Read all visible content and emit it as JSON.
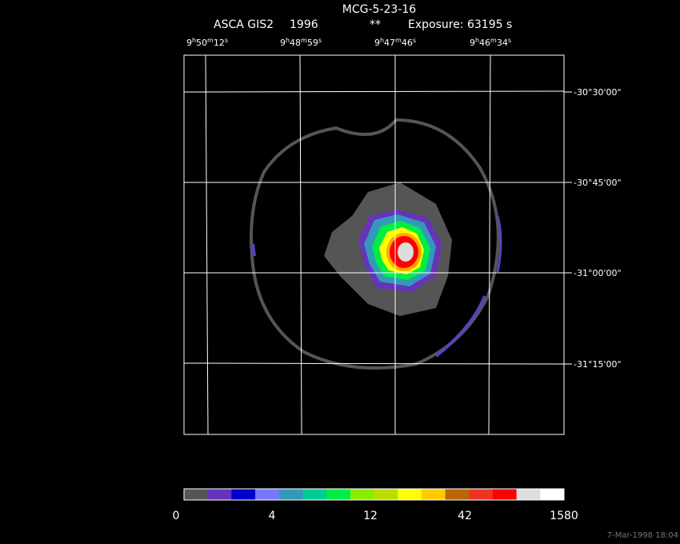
{
  "header": {
    "title": "MCG-5-23-16",
    "instrument": "ASCA GIS2",
    "year": "1996",
    "flag": "**",
    "exposure": "Exposure: 63195 s"
  },
  "ra_labels": [
    [
      "9",
      "h",
      "50",
      "m",
      "12",
      "s"
    ],
    [
      "9",
      "h",
      "48",
      "m",
      "59",
      "s"
    ],
    [
      "9",
      "h",
      "47",
      "m",
      "46",
      "s"
    ],
    [
      "9",
      "h",
      "46",
      "m",
      "34",
      "s"
    ]
  ],
  "dec_labels": [
    "-30°30'00\"",
    "-30°45'00\"",
    "-31°00'00\"",
    "-31°15'00\""
  ],
  "colorbar": {
    "colors": [
      "#555555",
      "#6633bb",
      "#0000cc",
      "#7777ff",
      "#3399bb",
      "#00cc99",
      "#00ee44",
      "#88ee00",
      "#bbdd00",
      "#ffff00",
      "#ffcc00",
      "#bb6600",
      "#ee3322",
      "#ff0000",
      "#dddddd",
      "#ffffff"
    ],
    "labels": [
      "0",
      "4",
      "12",
      "42",
      "1580"
    ]
  },
  "footer": "7-Mar-1998 18:04"
}
